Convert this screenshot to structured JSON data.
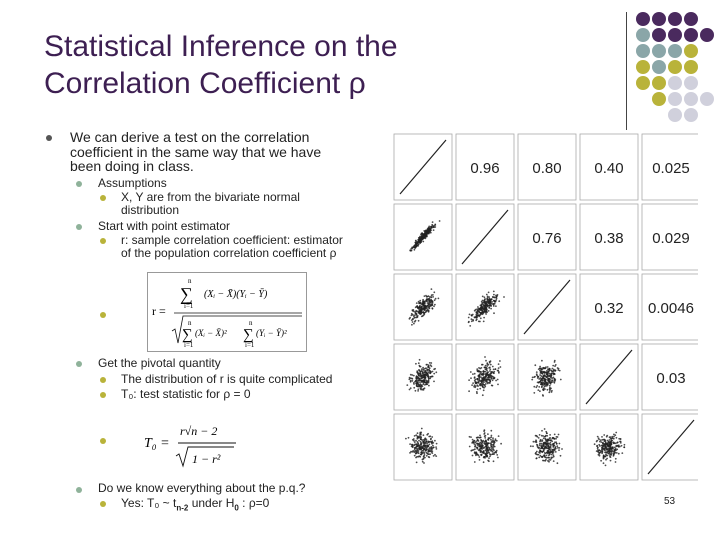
{
  "slide": {
    "title_line1": "Statistical Inference on the",
    "title_line2": "Correlation Coefficient ρ",
    "page_number": "53"
  },
  "bullets": {
    "intro_line1": "We can derive a test on the correlation",
    "intro_line2": "coefficient in the same way that we have",
    "intro_line3": "been doing in class.",
    "assumptions": "Assumptions",
    "assumption_1_line1": "X, Y are from the bivariate normal",
    "assumption_1_line2": "distribution",
    "start": "Start with point estimator",
    "estimator_line1": "r: sample correlation coefficient: estimator",
    "estimator_line2": "of the population correlation coefficient ρ",
    "pivotal": "Get the pivotal quantity",
    "pivotal_1": "The distribution of r is quite complicated",
    "pivotal_2": "T₀:  test statistic for ρ = 0",
    "question": "Do we know everything about the p.q.?",
    "answer_prefix": "Yes:  T₀ ~ t",
    "answer_sub1": "n-2",
    "answer_mid": "  under H",
    "answer_sub2": "0",
    "answer_suffix": " :  ρ=0"
  },
  "formulas": {
    "r_lhs": "r =",
    "r_sum": "∑",
    "r_top_lim": "n",
    "r_bot_lim": "i=1",
    "r_num_body": "(Xᵢ − X̄)(Yᵢ − Ȳ)",
    "r_den_a": "(Xᵢ − X̄)²",
    "r_den_b": "(Yᵢ − Ȳ)²",
    "t0_lhs": "T₀ =",
    "t0_num": "r√n − 2",
    "t0_den": "1 − r²"
  },
  "correlation_matrix": {
    "cells": [
      {
        "row": 1,
        "col": 2,
        "label": "0.96"
      },
      {
        "row": 1,
        "col": 3,
        "label": "0.80"
      },
      {
        "row": 1,
        "col": 4,
        "label": "0.40"
      },
      {
        "row": 1,
        "col": 5,
        "label": "0.025"
      },
      {
        "row": 2,
        "col": 3,
        "label": "0.76"
      },
      {
        "row": 2,
        "col": 4,
        "label": "0.38"
      },
      {
        "row": 2,
        "col": 5,
        "label": "0.029"
      },
      {
        "row": 3,
        "col": 4,
        "label": "0.32"
      },
      {
        "row": 3,
        "col": 5,
        "label": "0.0046"
      },
      {
        "row": 4,
        "col": 5,
        "label": "0.03"
      }
    ],
    "scatter_correlations": [
      {
        "row": 2,
        "col": 1,
        "rho": 0.96
      },
      {
        "row": 3,
        "col": 1,
        "rho": 0.8
      },
      {
        "row": 3,
        "col": 2,
        "rho": 0.76
      },
      {
        "row": 4,
        "col": 1,
        "rho": 0.4
      },
      {
        "row": 4,
        "col": 2,
        "rho": 0.38
      },
      {
        "row": 4,
        "col": 3,
        "rho": 0.32
      },
      {
        "row": 5,
        "col": 1,
        "rho": 0.025
      },
      {
        "row": 5,
        "col": 2,
        "rho": 0.029
      },
      {
        "row": 5,
        "col": 3,
        "rho": 0.0046
      },
      {
        "row": 5,
        "col": 4,
        "rho": 0.03
      }
    ]
  },
  "decor": {
    "colors": [
      "#4a2a5e",
      "#8aa6a8",
      "#b9b33a",
      "#d0d0dc"
    ]
  }
}
